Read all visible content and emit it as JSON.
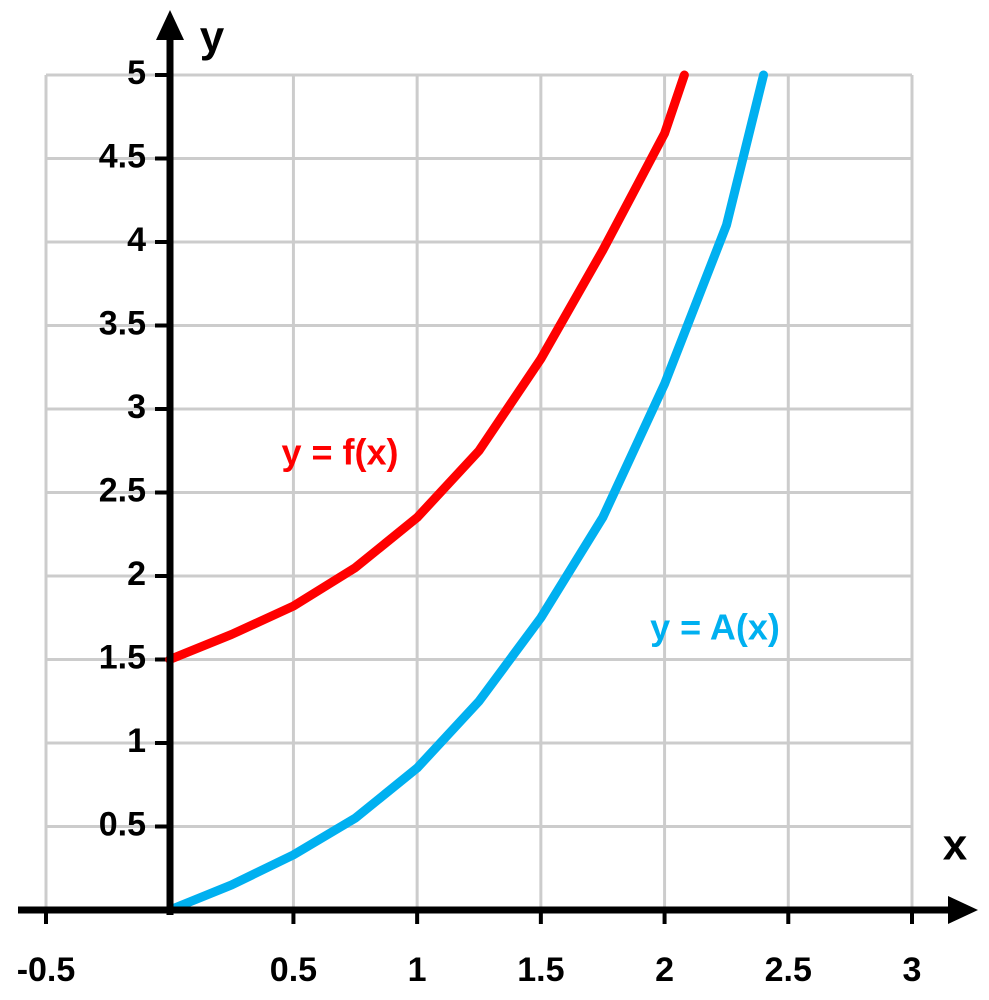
{
  "chart_data": {
    "type": "line",
    "x_label": "x",
    "y_label": "y",
    "xlim": [
      -0.5,
      3
    ],
    "ylim": [
      0,
      5
    ],
    "xticks": [
      -0.5,
      0.5,
      1,
      1.5,
      2,
      2.5,
      3
    ],
    "yticks": [
      0.5,
      1,
      1.5,
      2,
      2.5,
      3,
      3.5,
      4,
      4.5,
      5
    ],
    "grid": true,
    "series": [
      {
        "name": "y = f(x)",
        "color": "#ff0000",
        "x": [
          0,
          0.25,
          0.5,
          0.75,
          1,
          1.25,
          1.5,
          1.75,
          2,
          2.08
        ],
        "values": [
          1.5,
          1.65,
          1.82,
          2.05,
          2.35,
          2.75,
          3.3,
          3.95,
          4.65,
          5
        ]
      },
      {
        "name": "y = A(x)",
        "color": "#00b0f0",
        "x": [
          0,
          0.25,
          0.5,
          0.75,
          1,
          1.25,
          1.5,
          1.75,
          2,
          2.25,
          2.4
        ],
        "values": [
          0,
          0.15,
          0.33,
          0.55,
          0.85,
          1.25,
          1.75,
          2.35,
          3.15,
          4.1,
          5
        ]
      }
    ]
  }
}
